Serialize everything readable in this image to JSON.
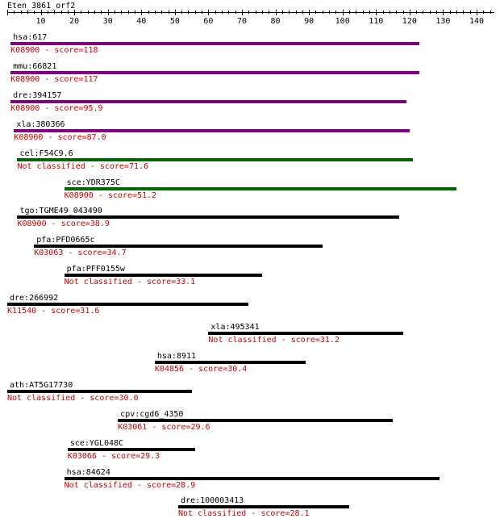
{
  "title": "Eten_3861_orf2",
  "axis": {
    "min": 0,
    "max": 145,
    "label_ticks": [
      10,
      20,
      30,
      40,
      50,
      60,
      70,
      80,
      90,
      100,
      110,
      120,
      130,
      140
    ]
  },
  "colors": {
    "purple": "#800080",
    "green": "#006400",
    "black": "#000000",
    "score_text": "#cc0000"
  },
  "hits": [
    {
      "id": "hsa:617",
      "start": 1,
      "end": 123,
      "color": "purple",
      "label": "K08900 - score=118"
    },
    {
      "id": "mmu:66821",
      "start": 1,
      "end": 123,
      "color": "purple",
      "label": "K08900 - score=117"
    },
    {
      "id": "dre:394157",
      "start": 1,
      "end": 119,
      "color": "purple",
      "label": "K08900 - score=95.9"
    },
    {
      "id": "xla:380366",
      "start": 2,
      "end": 120,
      "color": "purple",
      "label": "K08900 - score=87.0"
    },
    {
      "id": "cel:F54C9.6",
      "start": 3,
      "end": 121,
      "color": "green",
      "label": "Not classified - score=71.6"
    },
    {
      "id": "sce:YDR375C",
      "start": 17,
      "end": 134,
      "color": "green",
      "label": "K08900 - score=51.2"
    },
    {
      "id": "tgo:TGME49_043490",
      "start": 3,
      "end": 117,
      "color": "black",
      "label": "K08900 - score=38.9"
    },
    {
      "id": "pfa:PFD0665c",
      "start": 8,
      "end": 94,
      "color": "black",
      "label": "K03063 - score=34.7"
    },
    {
      "id": "pfa:PFF0155w",
      "start": 17,
      "end": 76,
      "color": "black",
      "label": "Not classified - score=33.1"
    },
    {
      "id": "dre:266992",
      "start": 0,
      "end": 72,
      "color": "black",
      "label": "K11540 - score=31.6"
    },
    {
      "id": "xla:495341",
      "start": 60,
      "end": 118,
      "color": "black",
      "label": "Not classified - score=31.2"
    },
    {
      "id": "hsa:8911",
      "start": 44,
      "end": 89,
      "color": "black",
      "label": "K04856 - score=30.4"
    },
    {
      "id": "ath:AT5G17730",
      "start": 0,
      "end": 55,
      "color": "black",
      "label": "Not classified - score=30.0"
    },
    {
      "id": "cpv:cgd6_4350",
      "start": 33,
      "end": 115,
      "color": "black",
      "label": "K03061 - score=29.6"
    },
    {
      "id": "sce:YGL048C",
      "start": 18,
      "end": 56,
      "color": "black",
      "label": "K03066 - score=29.3"
    },
    {
      "id": "hsa:84624",
      "start": 17,
      "end": 129,
      "color": "black",
      "label": "Not classified - score=28.9"
    },
    {
      "id": "dre:100003413",
      "start": 51,
      "end": 102,
      "color": "black",
      "label": "Not classified - score=28.1"
    }
  ]
}
